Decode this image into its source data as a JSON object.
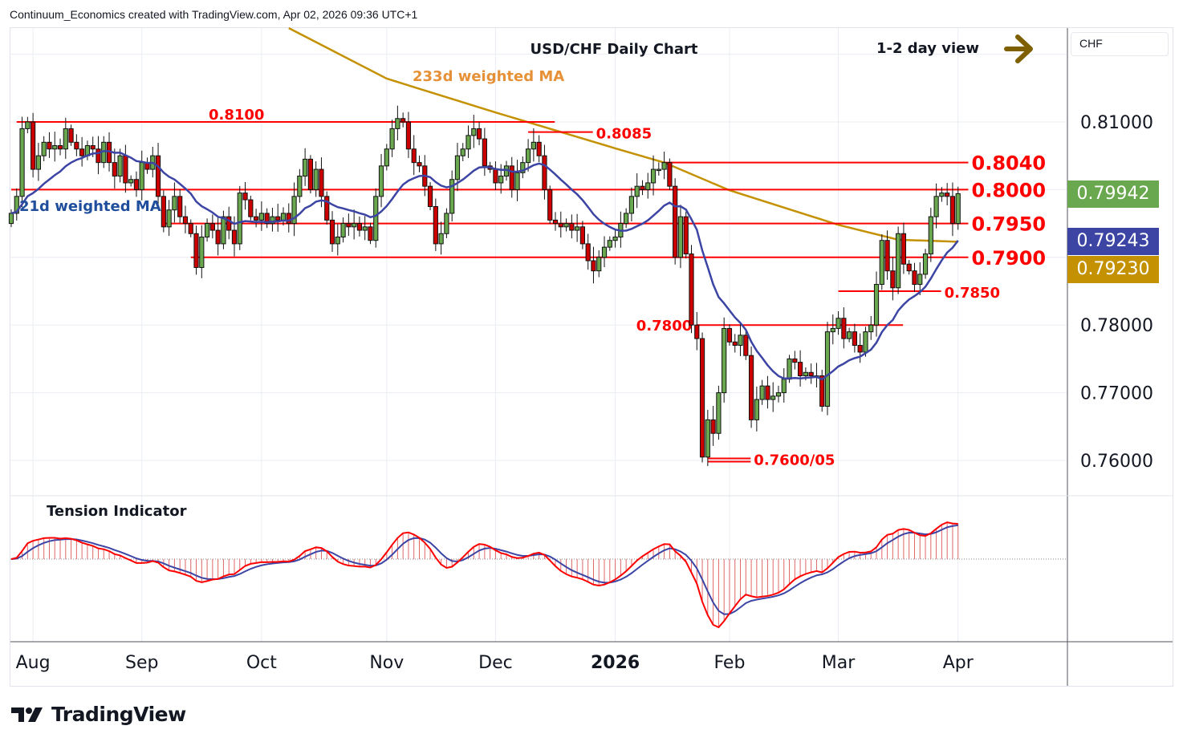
{
  "header": "Continuum_Economics created with TradingView.com, Apr 02, 2026 09:36 UTC+1",
  "currency": "CHF",
  "brand": "TradingView",
  "badges": [
    {
      "value": "0.79942",
      "color": "#6aa84f"
    },
    {
      "value": "0.79243",
      "color": "#3c44a4"
    },
    {
      "value": "0.79230",
      "color": "#c49102"
    }
  ],
  "chart_data": {
    "type": "candlestick",
    "title": "USD/CHF Daily Chart",
    "view_label": "1-2 day view",
    "view_direction": "right",
    "ma_labels": {
      "long": "233d weighted MA",
      "short": "21d weighted MA"
    },
    "indicator_title": "Tension Indicator",
    "ylim": [
      0.7545,
      0.824
    ],
    "y_ticks": [
      "0.81000",
      "0.78000",
      "0.77000",
      "0.76000"
    ],
    "y_tick_values": [
      0.81,
      0.78,
      0.77,
      0.76
    ],
    "x_ticks": [
      {
        "label": "Aug",
        "i": 4
      },
      {
        "label": "Sep",
        "i": 24
      },
      {
        "label": "Oct",
        "i": 46
      },
      {
        "label": "Nov",
        "i": 69
      },
      {
        "label": "Dec",
        "i": 89
      },
      {
        "label": "2026",
        "i": 111,
        "bold": true
      },
      {
        "label": "Feb",
        "i": 132
      },
      {
        "label": "Mar",
        "i": 152
      },
      {
        "label": "Apr",
        "i": 174
      }
    ],
    "closes": [
      0.7965,
      0.799,
      0.809,
      0.81,
      0.803,
      0.805,
      0.807,
      0.806,
      0.8065,
      0.806,
      0.809,
      0.807,
      0.806,
      0.805,
      0.8065,
      0.806,
      0.804,
      0.807,
      0.804,
      0.802,
      0.805,
      0.801,
      0.8015,
      0.8,
      0.804,
      0.803,
      0.805,
      0.799,
      0.7945,
      0.797,
      0.799,
      0.796,
      0.795,
      0.7935,
      0.7885,
      0.793,
      0.795,
      0.794,
      0.792,
      0.796,
      0.794,
      0.792,
      0.7995,
      0.7985,
      0.796,
      0.7955,
      0.7965,
      0.795,
      0.796,
      0.7955,
      0.7965,
      0.795,
      0.799,
      0.802,
      0.8045,
      0.8,
      0.803,
      0.799,
      0.7955,
      0.792,
      0.793,
      0.795,
      0.7945,
      0.795,
      0.794,
      0.7945,
      0.7925,
      0.799,
      0.8035,
      0.806,
      0.809,
      0.8105,
      0.81,
      0.806,
      0.804,
      0.8035,
      0.8005,
      0.7975,
      0.792,
      0.7935,
      0.7965,
      0.8015,
      0.805,
      0.806,
      0.808,
      0.809,
      0.8075,
      0.8035,
      0.803,
      0.801,
      0.802,
      0.8035,
      0.8,
      0.8025,
      0.804,
      0.806,
      0.807,
      0.805,
      0.8,
      0.7955,
      0.795,
      0.7945,
      0.795,
      0.794,
      0.7945,
      0.792,
      0.7895,
      0.788,
      0.79,
      0.7915,
      0.7925,
      0.793,
      0.795,
      0.7965,
      0.799,
      0.8005,
      0.8,
      0.801,
      0.803,
      0.803,
      0.804,
      0.8005,
      0.79,
      0.796,
      0.7905,
      0.78,
      0.778,
      0.7605,
      0.766,
      0.764,
      0.77,
      0.7795,
      0.7775,
      0.777,
      0.7785,
      0.7755,
      0.766,
      0.769,
      0.771,
      0.769,
      0.7695,
      0.77,
      0.772,
      0.775,
      0.7745,
      0.7725,
      0.773,
      0.7725,
      0.7725,
      0.768,
      0.779,
      0.7795,
      0.781,
      0.778,
      0.779,
      0.777,
      0.776,
      0.779,
      0.78,
      0.786,
      0.7925,
      0.788,
      0.7855,
      0.7935,
      0.789,
      0.788,
      0.786,
      0.7875,
      0.7905,
      0.796,
      0.799,
      0.7995,
      0.799,
      0.795,
      0.7994
    ],
    "ma233": [
      {
        "i": 51,
        "v": 0.8239
      },
      {
        "i": 69,
        "v": 0.8164
      },
      {
        "i": 89,
        "v": 0.8114
      },
      {
        "i": 111,
        "v": 0.8061
      },
      {
        "i": 120,
        "v": 0.804
      },
      {
        "i": 132,
        "v": 0.7999
      },
      {
        "i": 152,
        "v": 0.7948
      },
      {
        "i": 163,
        "v": 0.7926
      },
      {
        "i": 174,
        "v": 0.7923
      }
    ],
    "levels": [
      {
        "label": "0.8100",
        "value": 0.81,
        "from": 1,
        "to": 99,
        "label_pos": "above-left"
      },
      {
        "label": "0.8085",
        "value": 0.8085,
        "from": 95,
        "to": 106,
        "label_pos": "right-small"
      },
      {
        "label": "0.8040",
        "value": 0.804,
        "from": 120,
        "to": 175,
        "label_pos": "right"
      },
      {
        "label": "0.8000",
        "value": 0.8,
        "from": 0,
        "to": 175,
        "label_pos": "right"
      },
      {
        "label": "0.7950",
        "value": 0.795,
        "from": 28,
        "to": 175,
        "label_pos": "right"
      },
      {
        "label": "0.7900",
        "value": 0.79,
        "from": 33,
        "to": 175,
        "label_pos": "right"
      },
      {
        "label": "0.7850",
        "value": 0.785,
        "from": 152,
        "to": 170,
        "label_pos": "right-small"
      },
      {
        "label": "0.7800",
        "value": 0.78,
        "from": 126,
        "to": 163,
        "label_pos": "left-small"
      },
      {
        "label": "0.7600/05",
        "value": 0.7603,
        "from": 128,
        "to": 135,
        "label_pos": "right-small",
        "double": true
      }
    ],
    "colors": {
      "up": "#6aa84f",
      "down": "#cc0000",
      "level": "#ff0000",
      "ma_short": "#3c44a4",
      "ma_long": "#c49102",
      "view_arrow": "#7f6000"
    }
  }
}
